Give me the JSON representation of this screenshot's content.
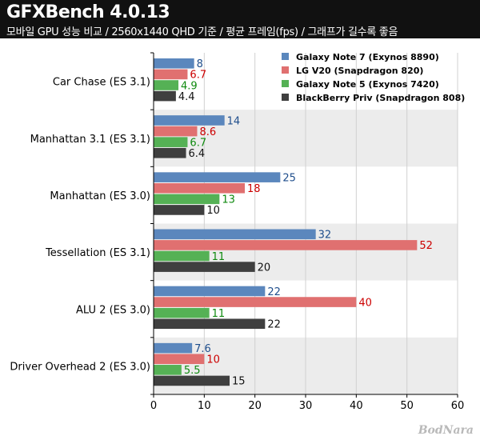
{
  "header": {
    "title": "GFXBench 4.0.13",
    "subtitle": "모바일 GPU 성능 비교 / 2560x1440 QHD 기준 / 평균 프레임(fps) / 그래프가 길수록 좋음"
  },
  "watermark": "BodNara",
  "chart_data": {
    "type": "bar",
    "orientation": "horizontal",
    "categories": [
      "Car Chase (ES 3.1)",
      "Manhattan 3.1 (ES 3.1)",
      "Manhattan (ES 3.0)",
      "Tessellation (ES 3.1)",
      "ALU 2 (ES 3.0)",
      "Driver Overhead 2 (ES 3.0)"
    ],
    "series": [
      {
        "name": "Galaxy Note 7 (Exynos 8890)",
        "color": "#5b87bd",
        "label_color": "#1f4e8c",
        "values": [
          8,
          14,
          25,
          32,
          22,
          7.6
        ]
      },
      {
        "name": "LG V20 (Snapdragon 820)",
        "color": "#e07070",
        "label_color": "#cc0000",
        "values": [
          6.7,
          8.6,
          18,
          52,
          40,
          10
        ]
      },
      {
        "name": "Galaxy Note 5 (Exynos 7420)",
        "color": "#55b155",
        "label_color": "#0f8a0f",
        "values": [
          4.9,
          6.7,
          13,
          11,
          11,
          5.5
        ]
      },
      {
        "name": "BlackBerry Priv (Snapdragon 808)",
        "color": "#3f3f3f",
        "label_color": "#111111",
        "values": [
          4.4,
          6.4,
          10,
          20,
          22,
          15
        ]
      }
    ],
    "xlim": [
      0,
      60
    ],
    "xticks": [
      0,
      10,
      20,
      30,
      40,
      50,
      60
    ],
    "grid": true,
    "legend_position": "top-right",
    "band_colors": [
      "#ffffff",
      "#ececec"
    ]
  }
}
